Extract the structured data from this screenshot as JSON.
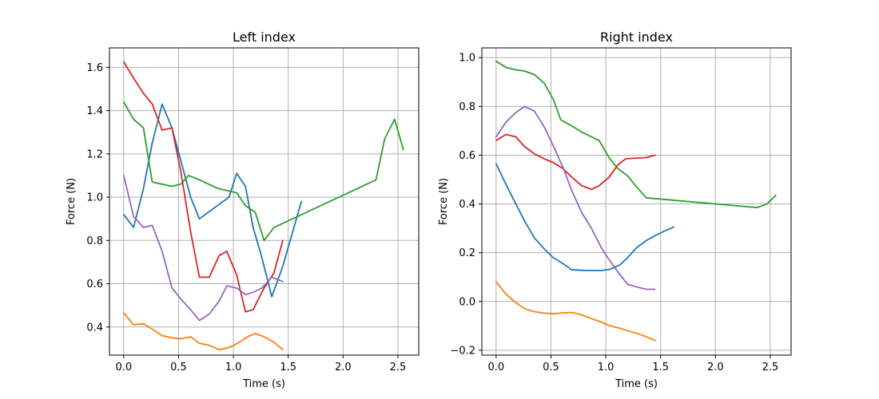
{
  "chart_data": [
    {
      "type": "line",
      "title": "Left index",
      "xlabel": "Time (s)",
      "ylabel": "Force (N)",
      "xlim": [
        -0.13,
        2.69
      ],
      "ylim": [
        0.27,
        1.69
      ],
      "xticks": [
        0.0,
        0.5,
        1.0,
        1.5,
        2.0,
        2.5
      ],
      "xtick_labels": [
        "0.0",
        "0.5",
        "1.0",
        "1.5",
        "2.0",
        "2.5"
      ],
      "yticks": [
        0.4,
        0.6,
        0.8,
        1.0,
        1.2,
        1.4,
        1.6
      ],
      "ytick_labels": [
        "0.4",
        "0.6",
        "0.8",
        "1.0",
        "1.2",
        "1.4",
        "1.6"
      ],
      "grid": true,
      "series": [
        {
          "color": "#1f77b4",
          "x": [
            0.0,
            0.09,
            0.18,
            0.26,
            0.35,
            0.44,
            0.52,
            0.61,
            0.69,
            0.96,
            1.03,
            1.11,
            1.18,
            1.26,
            1.35,
            1.45,
            1.62
          ],
          "y": [
            0.92,
            0.86,
            1.04,
            1.25,
            1.43,
            1.32,
            1.17,
            1.0,
            0.9,
            1.0,
            1.11,
            1.05,
            0.86,
            0.72,
            0.54,
            0.68,
            0.98
          ]
        },
        {
          "color": "#ff7f0e",
          "x": [
            0.0,
            0.09,
            0.18,
            0.26,
            0.35,
            0.44,
            0.52,
            0.61,
            0.69,
            0.78,
            0.87,
            0.96,
            1.04,
            1.13,
            1.2,
            1.28,
            1.37,
            1.45
          ],
          "y": [
            0.465,
            0.41,
            0.415,
            0.39,
            0.36,
            0.35,
            0.345,
            0.355,
            0.325,
            0.315,
            0.295,
            0.305,
            0.325,
            0.355,
            0.37,
            0.355,
            0.33,
            0.295
          ]
        },
        {
          "color": "#2ca02c",
          "x": [
            0.0,
            0.09,
            0.18,
            0.26,
            0.35,
            0.44,
            0.52,
            0.59,
            0.69,
            0.86,
            1.03,
            1.11,
            1.2,
            1.28,
            1.37,
            2.3,
            2.38,
            2.47,
            2.55
          ],
          "y": [
            1.44,
            1.36,
            1.32,
            1.07,
            1.06,
            1.05,
            1.06,
            1.1,
            1.08,
            1.04,
            1.02,
            0.96,
            0.93,
            0.8,
            0.86,
            1.08,
            1.27,
            1.36,
            1.22
          ]
        },
        {
          "color": "#d62728",
          "x": [
            0.0,
            0.09,
            0.18,
            0.26,
            0.35,
            0.44,
            0.52,
            0.61,
            0.69,
            0.78,
            0.87,
            0.94,
            1.03,
            1.11,
            1.18,
            1.28,
            1.37,
            1.45
          ],
          "y": [
            1.625,
            1.55,
            1.48,
            1.43,
            1.31,
            1.32,
            1.12,
            0.84,
            0.63,
            0.63,
            0.73,
            0.75,
            0.64,
            0.47,
            0.48,
            0.58,
            0.65,
            0.8
          ]
        },
        {
          "color": "#9467bd",
          "x": [
            0.0,
            0.09,
            0.18,
            0.26,
            0.35,
            0.44,
            0.52,
            0.61,
            0.69,
            0.78,
            0.87,
            0.94,
            1.03,
            1.11,
            1.18,
            1.26,
            1.35,
            1.45
          ],
          "y": [
            1.1,
            0.91,
            0.86,
            0.87,
            0.75,
            0.58,
            0.53,
            0.48,
            0.43,
            0.46,
            0.52,
            0.59,
            0.58,
            0.55,
            0.56,
            0.58,
            0.63,
            0.61
          ]
        }
      ]
    },
    {
      "type": "line",
      "title": "Right index",
      "xlabel": "Time (s)",
      "ylabel": "Force (N)",
      "xlim": [
        -0.13,
        2.69
      ],
      "ylim": [
        -0.22,
        1.04
      ],
      "xticks": [
        0.0,
        0.5,
        1.0,
        1.5,
        2.0,
        2.5
      ],
      "xtick_labels": [
        "0.0",
        "0.5",
        "1.0",
        "1.5",
        "2.0",
        "2.5"
      ],
      "yticks": [
        -0.2,
        0.0,
        0.2,
        0.4,
        0.6,
        0.8,
        1.0
      ],
      "ytick_labels": [
        "−0.2",
        "0.0",
        "0.2",
        "0.4",
        "0.6",
        "0.8",
        "1.0"
      ],
      "grid": true,
      "series": [
        {
          "color": "#1f77b4",
          "x": [
            0.0,
            0.09,
            0.18,
            0.26,
            0.35,
            0.44,
            0.52,
            0.61,
            0.69,
            0.78,
            0.87,
            0.96,
            1.04,
            1.13,
            1.2,
            1.28,
            1.37,
            1.45,
            1.54,
            1.62
          ],
          "y": [
            0.565,
            0.48,
            0.4,
            0.33,
            0.26,
            0.215,
            0.18,
            0.155,
            0.13,
            0.128,
            0.127,
            0.127,
            0.132,
            0.15,
            0.18,
            0.22,
            0.25,
            0.27,
            0.29,
            0.305
          ]
        },
        {
          "color": "#ff7f0e",
          "x": [
            0.0,
            0.09,
            0.18,
            0.26,
            0.35,
            0.44,
            0.52,
            0.61,
            0.69,
            0.78,
            0.87,
            0.96,
            1.04,
            1.13,
            1.2,
            1.28,
            1.37,
            1.45
          ],
          "y": [
            0.08,
            0.03,
            -0.005,
            -0.03,
            -0.042,
            -0.048,
            -0.05,
            -0.047,
            -0.045,
            -0.055,
            -0.07,
            -0.085,
            -0.1,
            -0.11,
            -0.12,
            -0.13,
            -0.145,
            -0.16
          ]
        },
        {
          "color": "#2ca02c",
          "x": [
            0.0,
            0.09,
            0.18,
            0.26,
            0.35,
            0.44,
            0.52,
            0.59,
            0.69,
            0.78,
            0.87,
            0.94,
            1.03,
            1.11,
            1.2,
            1.28,
            1.37,
            2.38,
            2.47,
            2.55
          ],
          "y": [
            0.985,
            0.96,
            0.95,
            0.945,
            0.93,
            0.895,
            0.83,
            0.745,
            0.72,
            0.695,
            0.675,
            0.66,
            0.59,
            0.545,
            0.515,
            0.47,
            0.425,
            0.385,
            0.4,
            0.435
          ]
        },
        {
          "color": "#d62728",
          "x": [
            0.0,
            0.09,
            0.18,
            0.26,
            0.35,
            0.44,
            0.52,
            0.61,
            0.69,
            0.78,
            0.87,
            0.94,
            1.03,
            1.11,
            1.18,
            1.28,
            1.37,
            1.45
          ],
          "y": [
            0.66,
            0.685,
            0.675,
            0.635,
            0.605,
            0.585,
            0.57,
            0.545,
            0.51,
            0.475,
            0.46,
            0.475,
            0.51,
            0.56,
            0.585,
            0.588,
            0.59,
            0.6
          ]
        },
        {
          "color": "#9467bd",
          "x": [
            0.0,
            0.09,
            0.18,
            0.26,
            0.35,
            0.44,
            0.52,
            0.61,
            0.69,
            0.78,
            0.87,
            0.96,
            1.04,
            1.13,
            1.2,
            1.28,
            1.37,
            1.45
          ],
          "y": [
            0.675,
            0.735,
            0.775,
            0.8,
            0.78,
            0.715,
            0.64,
            0.55,
            0.455,
            0.365,
            0.3,
            0.22,
            0.165,
            0.11,
            0.07,
            0.06,
            0.05,
            0.05
          ]
        }
      ]
    }
  ]
}
